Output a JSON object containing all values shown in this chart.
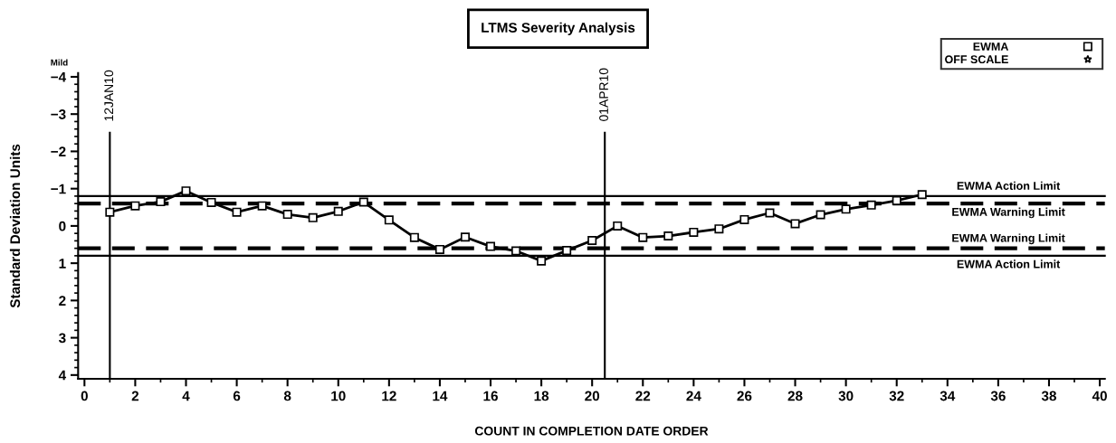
{
  "chart_data": {
    "type": "line",
    "title": "LTMS Severity Analysis",
    "xlabel": "COUNT IN COMPLETION DATE ORDER",
    "ylabel": "Standard Deviation Units",
    "x": [
      1,
      2,
      3,
      4,
      5,
      6,
      7,
      8,
      9,
      10,
      11,
      12,
      13,
      14,
      15,
      16,
      17,
      18,
      19,
      20,
      21,
      22,
      23,
      24,
      25,
      26,
      27,
      28,
      29,
      30,
      31,
      32,
      33
    ],
    "series": [
      {
        "name": "EWMA",
        "color": "#000000",
        "marker": "square",
        "values": [
          -0.37,
          -0.54,
          -0.65,
          -0.94,
          -0.63,
          -0.37,
          -0.54,
          -0.31,
          -0.22,
          -0.39,
          -0.64,
          -0.16,
          0.31,
          0.63,
          0.3,
          0.55,
          0.67,
          0.94,
          0.66,
          0.39,
          0.0,
          0.31,
          0.27,
          0.17,
          0.08,
          -0.17,
          -0.35,
          -0.06,
          -0.3,
          -0.45,
          -0.56,
          -0.68,
          -0.84
        ]
      },
      {
        "name": "OFF SCALE",
        "color": "#000000",
        "marker": "star",
        "values": [
          null,
          null,
          null,
          null,
          null,
          null,
          null,
          null,
          null,
          null,
          null,
          null,
          null,
          null,
          null,
          null,
          null,
          null,
          null,
          null,
          null,
          null,
          null,
          null,
          null,
          null,
          null,
          null,
          null,
          null,
          null,
          null,
          null
        ]
      }
    ],
    "xlim": [
      -0.25,
      40.2
    ],
    "xticks": [
      0,
      2,
      4,
      6,
      8,
      10,
      12,
      14,
      16,
      18,
      20,
      22,
      24,
      26,
      28,
      30,
      32,
      34,
      36,
      38,
      40
    ],
    "ylim": [
      4.1,
      -4.1
    ],
    "yticks": [
      -4,
      -3,
      -2,
      -1,
      0,
      1,
      2,
      3,
      4
    ],
    "ref_lines": [
      {
        "axis": "y",
        "value": -0.8,
        "label": "EWMA Action Limit",
        "line_style": "solid"
      },
      {
        "axis": "y",
        "value": -0.6,
        "label": "EWMA Warning Limit",
        "line_style": "dashed"
      },
      {
        "axis": "y",
        "value": 0.6,
        "label": "EWMA Warning Limit",
        "line_style": "dashed"
      },
      {
        "axis": "y",
        "value": 0.8,
        "label": "EWMA Action Limit",
        "line_style": "solid"
      },
      {
        "axis": "x",
        "value": 1,
        "label": "12JAN10",
        "line_style": "solid"
      },
      {
        "axis": "x",
        "value": 20.5,
        "label": "01APR10",
        "line_style": "solid"
      }
    ],
    "annotations": [
      "Mild"
    ],
    "legend": "top right",
    "grid": false
  }
}
